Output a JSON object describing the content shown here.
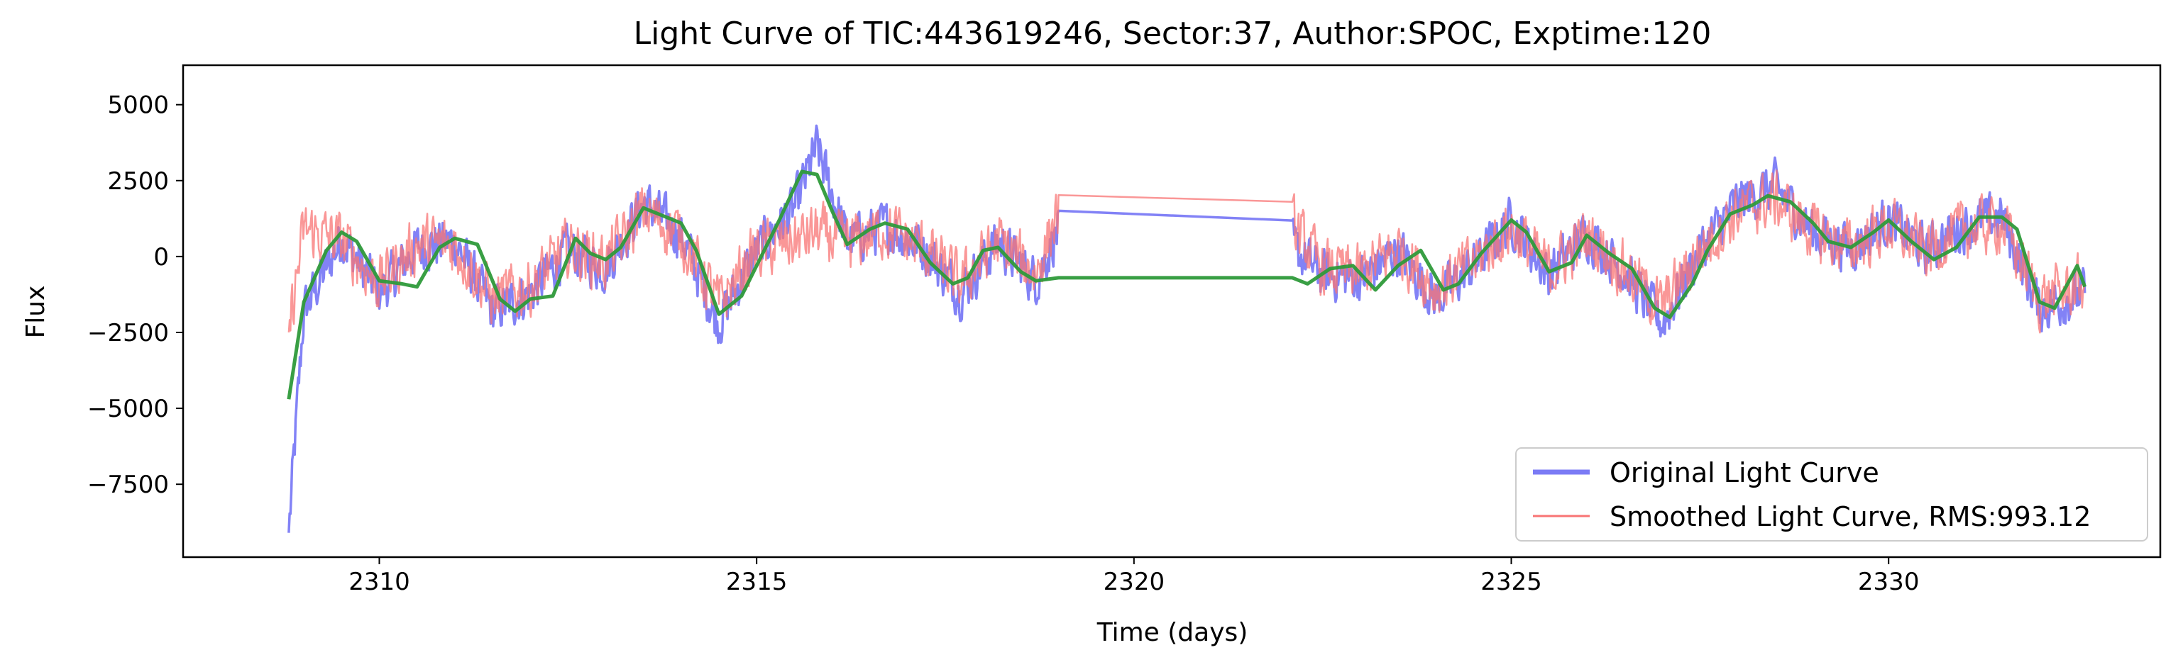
{
  "chart_data": {
    "type": "line",
    "title": "Light Curve of TIC:443619246, Sector:37, Author:SPOC, Exptime:120",
    "xlabel": "Time (days)",
    "ylabel": "Flux",
    "xlim": [
      2307.4,
      2333.6
    ],
    "ylim": [
      -9900,
      6300
    ],
    "xticks": [
      2310,
      2315,
      2320,
      2325,
      2330
    ],
    "yticks": [
      5000,
      2500,
      0,
      -2500,
      -5000,
      -7500
    ],
    "xtick_labels": [
      "2310",
      "2315",
      "2320",
      "2325",
      "2330"
    ],
    "ytick_labels": [
      "5000",
      "2500",
      "0",
      "−2500",
      "−5000",
      "−7500"
    ],
    "grid": false,
    "legend_position": "lower-right",
    "segments": [
      [
        2308.8,
        2319.0
      ],
      [
        2322.1,
        2332.6
      ]
    ],
    "series": [
      {
        "name": "Original Light Curve",
        "color": "#7b7bf5",
        "style": "noisy",
        "noise_amplitude": 1100,
        "anchors": [
          [
            2308.8,
            -9100
          ],
          [
            2309.0,
            -1800
          ],
          [
            2309.5,
            600
          ],
          [
            2310.0,
            -1200
          ],
          [
            2310.5,
            300
          ],
          [
            2311.0,
            500
          ],
          [
            2311.5,
            -1800
          ],
          [
            2312.0,
            -1200
          ],
          [
            2312.5,
            200
          ],
          [
            2313.0,
            -400
          ],
          [
            2313.5,
            1800
          ],
          [
            2314.0,
            700
          ],
          [
            2314.5,
            -2200
          ],
          [
            2315.0,
            200
          ],
          [
            2315.5,
            1600
          ],
          [
            2315.8,
            3600
          ],
          [
            2316.2,
            500
          ],
          [
            2316.7,
            1000
          ],
          [
            2317.2,
            300
          ],
          [
            2317.7,
            -1200
          ],
          [
            2318.2,
            500
          ],
          [
            2318.7,
            -800
          ],
          [
            2319.0,
            900
          ],
          [
            2322.1,
            300
          ],
          [
            2322.5,
            -600
          ],
          [
            2323.0,
            -700
          ],
          [
            2323.5,
            200
          ],
          [
            2324.0,
            -1400
          ],
          [
            2324.5,
            -300
          ],
          [
            2325.0,
            1200
          ],
          [
            2325.5,
            -600
          ],
          [
            2326.0,
            800
          ],
          [
            2326.5,
            -500
          ],
          [
            2327.0,
            -2200
          ],
          [
            2327.5,
            200
          ],
          [
            2328.0,
            1800
          ],
          [
            2328.5,
            2300
          ],
          [
            2329.0,
            800
          ],
          [
            2329.5,
            300
          ],
          [
            2330.0,
            1200
          ],
          [
            2330.5,
            200
          ],
          [
            2331.0,
            1000
          ],
          [
            2331.5,
            1300
          ],
          [
            2332.0,
            -1700
          ],
          [
            2332.6,
            -1200
          ]
        ]
      },
      {
        "name": "Smoothed Light Curve, RMS:993.12",
        "color": "#f87474",
        "style": "noisy",
        "noise_amplitude": 1300,
        "anchors": [
          [
            2308.8,
            -2500
          ],
          [
            2309.0,
            900
          ],
          [
            2309.5,
            500
          ],
          [
            2310.0,
            -900
          ],
          [
            2310.5,
            400
          ],
          [
            2311.0,
            400
          ],
          [
            2311.5,
            -1400
          ],
          [
            2312.0,
            -1000
          ],
          [
            2312.5,
            300
          ],
          [
            2313.0,
            -200
          ],
          [
            2313.5,
            1500
          ],
          [
            2314.0,
            700
          ],
          [
            2314.5,
            -1600
          ],
          [
            2315.0,
            200
          ],
          [
            2315.5,
            500
          ],
          [
            2315.8,
            800
          ],
          [
            2316.2,
            400
          ],
          [
            2316.7,
            900
          ],
          [
            2317.2,
            300
          ],
          [
            2317.7,
            -900
          ],
          [
            2318.2,
            500
          ],
          [
            2318.7,
            -600
          ],
          [
            2319.0,
            1550
          ],
          [
            2322.1,
            1000
          ],
          [
            2322.5,
            -400
          ],
          [
            2323.0,
            -600
          ],
          [
            2323.5,
            300
          ],
          [
            2324.0,
            -1100
          ],
          [
            2324.5,
            -200
          ],
          [
            2325.0,
            1000
          ],
          [
            2325.5,
            -500
          ],
          [
            2326.0,
            700
          ],
          [
            2326.5,
            -400
          ],
          [
            2327.0,
            -1700
          ],
          [
            2327.5,
            200
          ],
          [
            2328.0,
            1500
          ],
          [
            2328.5,
            1900
          ],
          [
            2329.0,
            800
          ],
          [
            2329.5,
            300
          ],
          [
            2330.0,
            1000
          ],
          [
            2330.5,
            200
          ],
          [
            2331.0,
            900
          ],
          [
            2331.5,
            1100
          ],
          [
            2332.0,
            -1400
          ],
          [
            2332.6,
            -900
          ]
        ]
      },
      {
        "name": "",
        "color": "#2e9a3a",
        "style": "smooth",
        "points": [
          [
            2308.8,
            -4700
          ],
          [
            2309.0,
            -1500
          ],
          [
            2309.3,
            200
          ],
          [
            2309.5,
            800
          ],
          [
            2309.7,
            500
          ],
          [
            2310.0,
            -800
          ],
          [
            2310.3,
            -900
          ],
          [
            2310.5,
            -1000
          ],
          [
            2310.8,
            300
          ],
          [
            2311.0,
            600
          ],
          [
            2311.3,
            400
          ],
          [
            2311.6,
            -1400
          ],
          [
            2311.8,
            -1800
          ],
          [
            2312.0,
            -1400
          ],
          [
            2312.3,
            -1300
          ],
          [
            2312.6,
            600
          ],
          [
            2312.8,
            100
          ],
          [
            2313.0,
            -100
          ],
          [
            2313.2,
            300
          ],
          [
            2313.5,
            1600
          ],
          [
            2313.8,
            1300
          ],
          [
            2314.0,
            1100
          ],
          [
            2314.2,
            200
          ],
          [
            2314.5,
            -1900
          ],
          [
            2314.8,
            -1300
          ],
          [
            2315.0,
            -300
          ],
          [
            2315.3,
            1200
          ],
          [
            2315.6,
            2800
          ],
          [
            2315.8,
            2700
          ],
          [
            2316.0,
            1500
          ],
          [
            2316.2,
            400
          ],
          [
            2316.5,
            900
          ],
          [
            2316.7,
            1100
          ],
          [
            2317.0,
            900
          ],
          [
            2317.3,
            -200
          ],
          [
            2317.6,
            -900
          ],
          [
            2317.8,
            -700
          ],
          [
            2318.0,
            200
          ],
          [
            2318.2,
            300
          ],
          [
            2318.5,
            -500
          ],
          [
            2318.7,
            -800
          ],
          [
            2319.0,
            -700
          ],
          [
            2322.1,
            -700
          ],
          [
            2322.3,
            -900
          ],
          [
            2322.6,
            -400
          ],
          [
            2322.9,
            -300
          ],
          [
            2323.2,
            -1100
          ],
          [
            2323.5,
            -300
          ],
          [
            2323.8,
            200
          ],
          [
            2324.1,
            -1100
          ],
          [
            2324.3,
            -900
          ],
          [
            2324.6,
            100
          ],
          [
            2325.0,
            1200
          ],
          [
            2325.2,
            800
          ],
          [
            2325.5,
            -500
          ],
          [
            2325.8,
            -200
          ],
          [
            2326.0,
            700
          ],
          [
            2326.3,
            100
          ],
          [
            2326.6,
            -400
          ],
          [
            2326.9,
            -1700
          ],
          [
            2327.1,
            -2000
          ],
          [
            2327.4,
            -900
          ],
          [
            2327.6,
            200
          ],
          [
            2327.9,
            1400
          ],
          [
            2328.2,
            1700
          ],
          [
            2328.4,
            2000
          ],
          [
            2328.7,
            1800
          ],
          [
            2329.0,
            1100
          ],
          [
            2329.2,
            500
          ],
          [
            2329.5,
            300
          ],
          [
            2329.8,
            800
          ],
          [
            2330.0,
            1200
          ],
          [
            2330.3,
            500
          ],
          [
            2330.6,
            -100
          ],
          [
            2330.9,
            300
          ],
          [
            2331.2,
            1300
          ],
          [
            2331.5,
            1300
          ],
          [
            2331.7,
            900
          ],
          [
            2332.0,
            -1500
          ],
          [
            2332.2,
            -1700
          ],
          [
            2332.5,
            -300
          ],
          [
            2332.6,
            -1000
          ]
        ]
      }
    ]
  }
}
